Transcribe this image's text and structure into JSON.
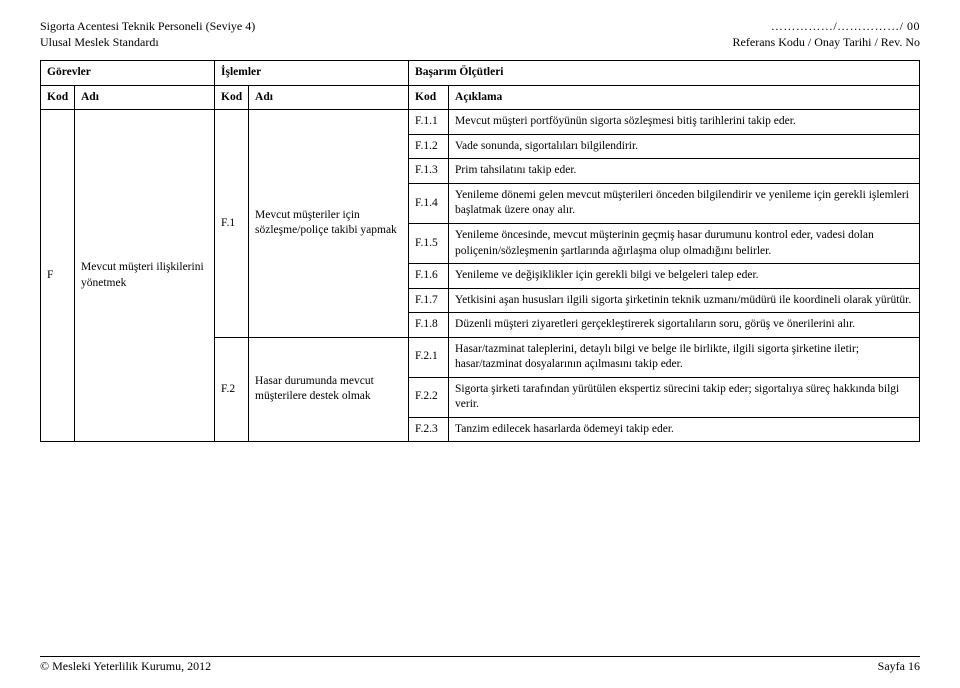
{
  "header": {
    "left_line1": "Sigorta Acentesi Teknik Personeli (Seviye 4)",
    "left_line2": "Ulusal Meslek Standardı",
    "right_line1": "……………/……………/ 00",
    "right_line2": "Referans Kodu / Onay Tarihi / Rev. No"
  },
  "tableHeaders": {
    "gorevler": "Görevler",
    "islemler": "İşlemler",
    "basarim": "Başarım Ölçütleri",
    "kod": "Kod",
    "adi": "Adı",
    "aciklama": "Açıklama"
  },
  "task": {
    "kod": "F",
    "adi": "Mevcut müşteri ilişkilerini yönetmek"
  },
  "ops": {
    "f1": {
      "kod": "F.1",
      "adi": "Mevcut müşteriler için sözleşme/poliçe takibi yapmak"
    },
    "f2": {
      "kod": "F.2",
      "adi": "Hasar durumunda mevcut müşterilere destek olmak"
    }
  },
  "criteria": {
    "f11": {
      "kod": "F.1.1",
      "desc": "Mevcut müşteri portföyünün sigorta sözleşmesi bitiş tarihlerini takip eder."
    },
    "f12": {
      "kod": "F.1.2",
      "desc": "Vade sonunda, sigortalıları bilgilendirir."
    },
    "f13": {
      "kod": "F.1.3",
      "desc": "Prim tahsilatını takip eder."
    },
    "f14": {
      "kod": "F.1.4",
      "desc": "Yenileme dönemi gelen mevcut müşterileri önceden bilgilendirir ve yenileme için gerekli işlemleri başlatmak üzere onay alır."
    },
    "f15": {
      "kod": "F.1.5",
      "desc": "Yenileme öncesinde, mevcut müşterinin geçmiş hasar durumunu kontrol eder, vadesi dolan poliçenin/sözleşmenin şartlarında ağırlaşma olup olmadığını belirler."
    },
    "f16": {
      "kod": "F.1.6",
      "desc": "Yenileme ve değişiklikler için gerekli bilgi ve belgeleri talep eder."
    },
    "f17": {
      "kod": "F.1.7",
      "desc": "Yetkisini aşan hususları ilgili sigorta şirketinin teknik uzmanı/müdürü ile koordineli olarak yürütür."
    },
    "f18": {
      "kod": "F.1.8",
      "desc": "Düzenli müşteri ziyaretleri gerçekleştirerek sigortalıların soru, görüş ve önerilerini alır."
    },
    "f21": {
      "kod": "F.2.1",
      "desc": "Hasar/tazminat taleplerini, detaylı bilgi ve belge ile birlikte, ilgili sigorta şirketine iletir; hasar/tazminat dosyalarının açılmasını takip eder."
    },
    "f22": {
      "kod": "F.2.2",
      "desc": "Sigorta şirketi tarafından yürütülen ekspertiz sürecini takip eder; sigortalıya süreç hakkında bilgi verir."
    },
    "f23": {
      "kod": "F.2.3",
      "desc": "Tanzim edilecek hasarlarda ödemeyi takip eder."
    }
  },
  "footer": {
    "left": "© Mesleki Yeterlilik Kurumu, 2012",
    "right": "Sayfa 16"
  }
}
